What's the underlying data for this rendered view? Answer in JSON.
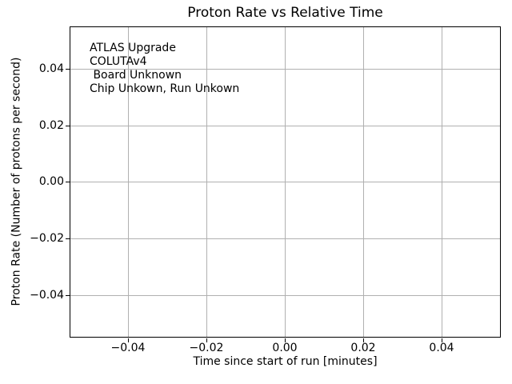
{
  "figure": {
    "title": "Proton Rate vs Relative Time",
    "xlabel": "Time since start of run [minutes]",
    "ylabel": "Proton Rate (Number of protons per second)"
  },
  "axes": {
    "x_tick_labels": [
      "−0.04",
      "−0.02",
      "0.00",
      "0.02",
      "0.04"
    ],
    "y_tick_labels": [
      "0.04",
      "0.02",
      "0.00",
      "−0.02",
      "−0.04"
    ]
  },
  "annotation": {
    "lines": [
      "ATLAS Upgrade",
      "COLUTAv4",
      " Board Unknown",
      "Chip Unkown, Run Unkown"
    ]
  },
  "colors": {
    "background": "#ffffff",
    "text": "#000000",
    "grid": "#b0b0b0",
    "spine": "#000000"
  },
  "chart_data": {
    "type": "scatter",
    "title": "Proton Rate vs Relative Time",
    "xlabel": "Time since start of run [minutes]",
    "ylabel": "Proton Rate (Number of protons per second)",
    "x": [],
    "y": [],
    "series": [],
    "xlim": [
      -0.055,
      0.055
    ],
    "ylim": [
      -0.055,
      0.055
    ],
    "xticks": [
      -0.04,
      -0.02,
      0.0,
      0.02,
      0.04
    ],
    "yticks": [
      -0.04,
      -0.02,
      0.0,
      0.02,
      0.04
    ],
    "grid": true,
    "legend_position": "none",
    "annotations": [
      "ATLAS Upgrade",
      "COLUTAv4",
      " Board Unknown",
      "Chip Unkown, Run Unkown"
    ]
  }
}
